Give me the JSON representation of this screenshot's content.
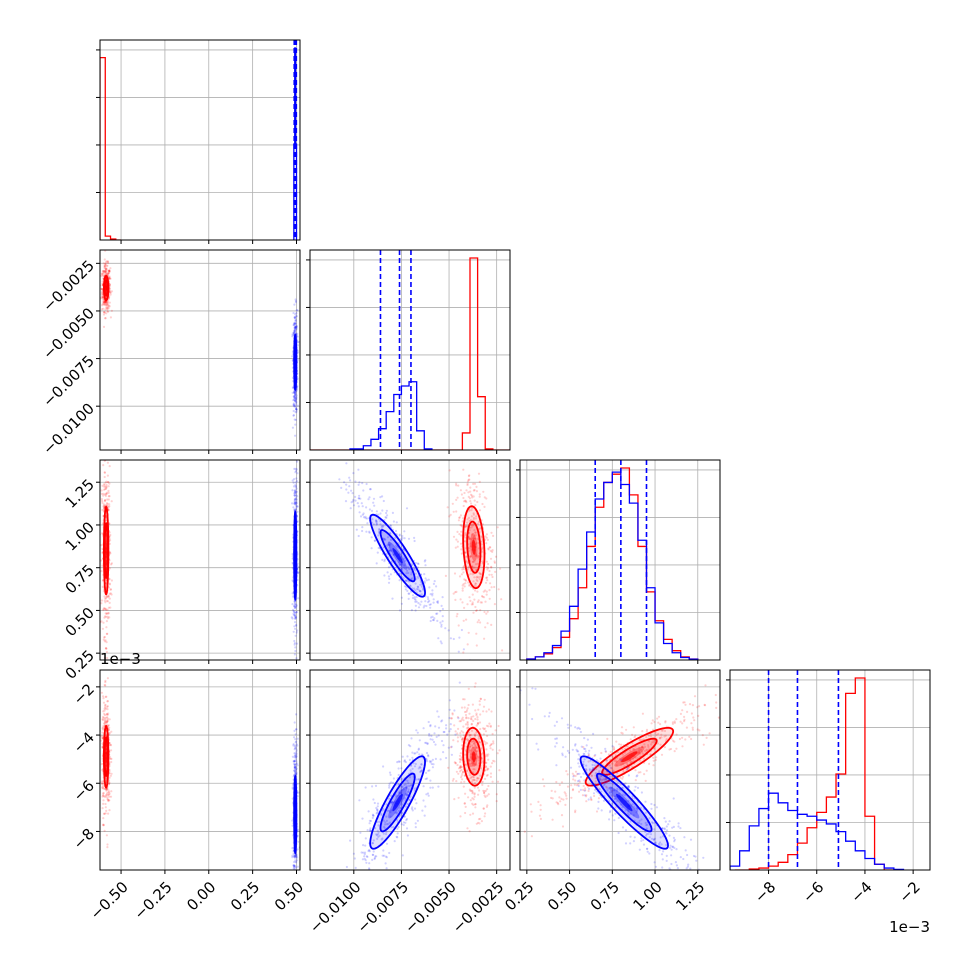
{
  "colors": {
    "red": "#ff0000",
    "blue": "#0000ff",
    "grid": "#b0b0b0",
    "axis": "#000000"
  },
  "chart_data": {
    "type": "corner",
    "grid": true,
    "series": [
      "red",
      "blue"
    ],
    "parameters": [
      {
        "range": [
          -0.62,
          0.52
        ],
        "ticks": [
          -0.5,
          -0.25,
          0.0,
          0.25,
          0.5
        ],
        "tick_labels": [
          "−0.50",
          "−0.25",
          "0.00",
          "0.25",
          "0.50"
        ],
        "offset": ""
      },
      {
        "range": [
          -0.0123,
          -0.0018
        ],
        "ticks": [
          -0.01,
          -0.0075,
          -0.005,
          -0.0025
        ],
        "tick_labels": [
          "−0.0100",
          "−0.0075",
          "−0.0050",
          "−0.0025"
        ],
        "offset": ""
      },
      {
        "range": [
          0.21,
          1.38
        ],
        "ticks": [
          0.25,
          0.5,
          0.75,
          1.0,
          1.25
        ],
        "tick_labels": [
          "0.25",
          "0.50",
          "0.75",
          "1.00",
          "1.25"
        ],
        "offset": ""
      },
      {
        "range": [
          -9.6,
          -1.3
        ],
        "ticks": [
          -8,
          -6,
          -4,
          -2
        ],
        "tick_labels": [
          "−8",
          "−6",
          "−4",
          "−2"
        ],
        "offset": "1e−3"
      }
    ],
    "diagonal": [
      {
        "quantiles_blue": [
          0.487,
          0.493,
          0.499
        ],
        "hist_red": {
          "edges": [
            -0.62,
            -0.59,
            -0.56,
            -0.53,
            -0.5
          ],
          "counts": [
            0.95,
            0.02,
            0.005,
            0
          ]
        },
        "hist_blue": {
          "edges": [
            0.485,
            0.49,
            0.495,
            0.5
          ],
          "counts": [
            0.5,
            1.0,
            0.5
          ]
        }
      },
      {
        "quantiles_blue": [
          -0.0086,
          -0.0076,
          -0.007
        ],
        "hist_red": {
          "edges": [
            -0.0123,
            -0.0043,
            -0.0039,
            -0.0035,
            -0.0031,
            -0.0027,
            -0.0018
          ],
          "counts": [
            0,
            0.08,
            0.9,
            0.25,
            0.005,
            0
          ]
        },
        "hist_blue": {
          "edges": [
            -0.0102,
            -0.0095,
            -0.0091,
            -0.0087,
            -0.0083,
            -0.0079,
            -0.0075,
            -0.0071,
            -0.0067,
            -0.0063,
            -0.0059
          ],
          "counts": [
            0.005,
            0.02,
            0.05,
            0.1,
            0.18,
            0.26,
            0.3,
            0.32,
            0.09,
            0.005
          ]
        }
      },
      {
        "quantiles_blue": [
          0.65,
          0.8,
          0.95
        ],
        "hist_red": {
          "edges": [
            0.25,
            0.3,
            0.35,
            0.4,
            0.45,
            0.5,
            0.55,
            0.6,
            0.65,
            0.7,
            0.75,
            0.8,
            0.85,
            0.9,
            0.95,
            1.0,
            1.05,
            1.1,
            1.15,
            1.2,
            1.25
          ],
          "counts": [
            0.005,
            0.015,
            0.03,
            0.06,
            0.11,
            0.2,
            0.35,
            0.55,
            0.74,
            0.86,
            0.9,
            0.93,
            0.8,
            0.55,
            0.33,
            0.19,
            0.1,
            0.045,
            0.015,
            0.005
          ]
        },
        "hist_blue": {
          "edges": [
            0.25,
            0.3,
            0.35,
            0.4,
            0.45,
            0.5,
            0.55,
            0.6,
            0.65,
            0.7,
            0.75,
            0.8,
            0.85,
            0.9,
            0.95,
            1.0,
            1.05,
            1.1,
            1.15,
            1.2,
            1.25
          ],
          "counts": [
            0.005,
            0.015,
            0.035,
            0.07,
            0.14,
            0.26,
            0.44,
            0.62,
            0.78,
            0.86,
            0.91,
            0.85,
            0.76,
            0.58,
            0.35,
            0.18,
            0.08,
            0.035,
            0.012,
            0.004
          ]
        }
      },
      {
        "quantiles_blue": [
          -8.0,
          -6.8,
          -5.1
        ],
        "hist_red": {
          "edges": [
            -9.4,
            -8.8,
            -8.4,
            -8.0,
            -7.6,
            -7.2,
            -6.8,
            -6.4,
            -6.0,
            -5.6,
            -5.2,
            -4.8,
            -4.4,
            -4.0,
            -3.6,
            -3.2,
            -2.8
          ],
          "counts": [
            0,
            0.005,
            0.01,
            0.02,
            0.04,
            0.08,
            0.14,
            0.22,
            0.3,
            0.38,
            0.5,
            0.92,
            1.0,
            0.28,
            0.03,
            0
          ]
        },
        "hist_blue": {
          "edges": [
            -9.6,
            -9.2,
            -8.8,
            -8.4,
            -8.0,
            -7.6,
            -7.2,
            -6.8,
            -6.4,
            -6.0,
            -5.6,
            -5.2,
            -4.8,
            -4.4,
            -4.0,
            -3.6,
            -3.2,
            -2.8,
            -2.4
          ],
          "counts": [
            0.02,
            0.1,
            0.23,
            0.32,
            0.4,
            0.35,
            0.31,
            0.29,
            0.28,
            0.26,
            0.24,
            0.2,
            0.15,
            0.1,
            0.06,
            0.03,
            0.01,
            0.003
          ]
        }
      }
    ],
    "offdiagonal": [
      {
        "row": 1,
        "col": 0,
        "red": {
          "mean": [
            -0.585,
            -0.0038
          ],
          "std": [
            0.008,
            0.0004
          ],
          "rho": 0.0
        },
        "blue": {
          "mean": [
            0.493,
            -0.0077
          ],
          "std": [
            0.004,
            0.0009
          ],
          "rho": 0.0
        }
      },
      {
        "row": 2,
        "col": 0,
        "red": {
          "mean": [
            -0.585,
            0.85
          ],
          "std": [
            0.008,
            0.16
          ],
          "rho": 0.0
        },
        "blue": {
          "mean": [
            0.493,
            0.82
          ],
          "std": [
            0.004,
            0.16
          ],
          "rho": 0.0
        }
      },
      {
        "row": 2,
        "col": 1,
        "red": {
          "mean": [
            -0.0037,
            0.87
          ],
          "std": [
            0.00035,
            0.15
          ],
          "rho": -0.2
        },
        "blue": {
          "mean": [
            -0.0077,
            0.82
          ],
          "std": [
            0.0009,
            0.15
          ],
          "rho": -0.9
        }
      },
      {
        "row": 3,
        "col": 0,
        "red": {
          "mean": [
            -0.585,
            -4.9
          ],
          "std": [
            0.008,
            0.8
          ],
          "rho": 0.0
        },
        "blue": {
          "mean": [
            0.493,
            -7.3
          ],
          "std": [
            0.004,
            1.0
          ],
          "rho": 0.0
        }
      },
      {
        "row": 3,
        "col": 1,
        "red": {
          "mean": [
            -0.0037,
            -4.9
          ],
          "std": [
            0.00035,
            0.75
          ],
          "rho": -0.1
        },
        "blue": {
          "mean": [
            -0.0077,
            -6.8
          ],
          "std": [
            0.0009,
            1.2
          ],
          "rho": 0.88
        }
      },
      {
        "row": 3,
        "col": 2,
        "red": {
          "mean": [
            0.85,
            -4.9
          ],
          "std": [
            0.16,
            0.75
          ],
          "rho": 0.88
        },
        "blue": {
          "mean": [
            0.82,
            -6.8
          ],
          "std": [
            0.16,
            1.2
          ],
          "rho": -0.93
        }
      }
    ]
  }
}
